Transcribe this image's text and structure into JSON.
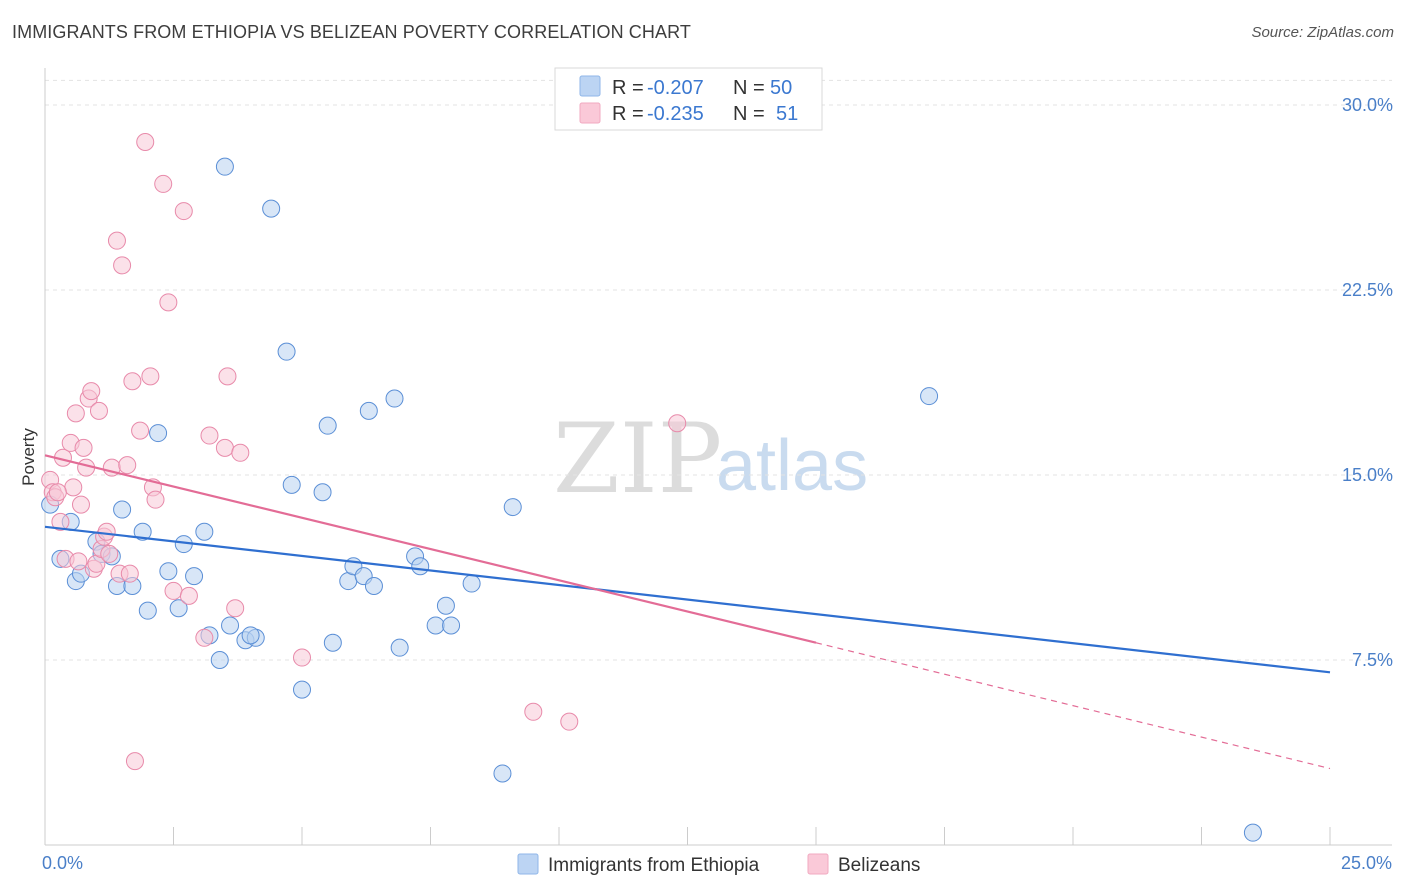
{
  "header": {
    "title": "IMMIGRANTS FROM ETHIOPIA VS BELIZEAN POVERTY CORRELATION CHART",
    "source": "Source: ZipAtlas.com"
  },
  "watermark": {
    "zip": "ZIP",
    "atlas": "atlas"
  },
  "legend_top": {
    "rows": [
      {
        "r_label": "R =",
        "r_value": "-0.207",
        "n_label": "N =",
        "n_value": "50",
        "color": "#8fb6e8"
      },
      {
        "r_label": "R =",
        "r_value": "-0.235",
        "n_label": "N =",
        "n_value": "51",
        "color": "#f1a9c0"
      }
    ]
  },
  "legend_bottom": {
    "items": [
      {
        "label": "Immigrants from Ethiopia",
        "color": "#8fb6e8"
      },
      {
        "label": "Belizeans",
        "color": "#f1a9c0"
      }
    ]
  },
  "chart_data": {
    "type": "scatter",
    "title": "IMMIGRANTS FROM ETHIOPIA VS BELIZEAN POVERTY CORRELATION CHART",
    "xlabel": "",
    "ylabel": "Poverty",
    "xlim": [
      0,
      25
    ],
    "ylim": [
      0,
      31.5
    ],
    "x_tick_labels": [
      "0.0%",
      "25.0%"
    ],
    "y_ticks": [
      7.5,
      15.0,
      22.5,
      30.0
    ],
    "y_tick_labels": [
      "7.5%",
      "15.0%",
      "22.5%",
      "30.0%"
    ],
    "grid": true,
    "legend_placement": "top-center",
    "series": [
      {
        "name": "Immigrants from Ethiopia",
        "color": "#5b8fd6",
        "fill": "#b8d1f0",
        "trend": {
          "x": [
            0,
            25
          ],
          "y": [
            12.9,
            7.0
          ],
          "style": "solid",
          "color": "#2f6fd0"
        },
        "points": [
          [
            0.1,
            13.8
          ],
          [
            0.3,
            11.6
          ],
          [
            0.5,
            13.1
          ],
          [
            0.6,
            10.7
          ],
          [
            0.7,
            11.0
          ],
          [
            1.0,
            12.3
          ],
          [
            1.1,
            11.8
          ],
          [
            1.3,
            11.7
          ],
          [
            1.4,
            10.5
          ],
          [
            1.5,
            13.6
          ],
          [
            1.7,
            10.5
          ],
          [
            1.9,
            12.7
          ],
          [
            2.0,
            9.5
          ],
          [
            2.2,
            16.7
          ],
          [
            2.4,
            11.1
          ],
          [
            2.6,
            9.6
          ],
          [
            2.7,
            12.2
          ],
          [
            2.9,
            10.9
          ],
          [
            3.1,
            12.7
          ],
          [
            3.2,
            8.5
          ],
          [
            3.4,
            7.5
          ],
          [
            3.6,
            8.9
          ],
          [
            3.9,
            8.3
          ],
          [
            4.1,
            8.4
          ],
          [
            3.5,
            27.5
          ],
          [
            4.4,
            25.8
          ],
          [
            4.7,
            20.0
          ],
          [
            4.8,
            14.6
          ],
          [
            5.0,
            6.3
          ],
          [
            5.4,
            14.3
          ],
          [
            5.5,
            17.0
          ],
          [
            5.6,
            8.2
          ],
          [
            5.9,
            10.7
          ],
          [
            6.0,
            11.3
          ],
          [
            6.2,
            10.9
          ],
          [
            6.3,
            17.6
          ],
          [
            6.4,
            10.5
          ],
          [
            6.8,
            18.1
          ],
          [
            6.9,
            8.0
          ],
          [
            7.2,
            11.7
          ],
          [
            7.3,
            11.3
          ],
          [
            7.6,
            8.9
          ],
          [
            7.8,
            9.7
          ],
          [
            7.9,
            8.9
          ],
          [
            8.3,
            10.6
          ],
          [
            8.9,
            2.9
          ],
          [
            9.1,
            13.7
          ],
          [
            17.2,
            18.2
          ],
          [
            23.5,
            0.5
          ],
          [
            4.0,
            8.5
          ]
        ]
      },
      {
        "name": "Belizeans",
        "color": "#e88aaa",
        "fill": "#f8c8d7",
        "trend": {
          "x": [
            0,
            15
          ],
          "y": [
            15.8,
            8.2
          ],
          "style": "solid",
          "color": "#e36c96",
          "extension": {
            "x": [
              15,
              25
            ],
            "y": [
              8.2,
              3.1
            ],
            "style": "dashed"
          }
        },
        "points": [
          [
            0.1,
            14.8
          ],
          [
            0.15,
            14.3
          ],
          [
            0.2,
            14.1
          ],
          [
            0.3,
            13.1
          ],
          [
            0.35,
            15.7
          ],
          [
            0.4,
            11.6
          ],
          [
            0.5,
            16.3
          ],
          [
            0.55,
            14.5
          ],
          [
            0.6,
            17.5
          ],
          [
            0.65,
            11.5
          ],
          [
            0.7,
            13.8
          ],
          [
            0.75,
            16.1
          ],
          [
            0.8,
            15.3
          ],
          [
            0.85,
            18.1
          ],
          [
            0.9,
            18.4
          ],
          [
            0.95,
            11.2
          ],
          [
            1.0,
            11.4
          ],
          [
            1.05,
            17.6
          ],
          [
            1.1,
            12.0
          ],
          [
            1.15,
            12.5
          ],
          [
            1.2,
            12.7
          ],
          [
            1.3,
            15.3
          ],
          [
            1.4,
            24.5
          ],
          [
            1.45,
            11.0
          ],
          [
            1.5,
            23.5
          ],
          [
            1.6,
            15.4
          ],
          [
            1.65,
            11.0
          ],
          [
            1.7,
            18.8
          ],
          [
            1.75,
            3.4
          ],
          [
            1.85,
            16.8
          ],
          [
            1.95,
            28.5
          ],
          [
            2.05,
            19.0
          ],
          [
            2.1,
            14.5
          ],
          [
            2.15,
            14.0
          ],
          [
            2.3,
            26.8
          ],
          [
            2.4,
            22.0
          ],
          [
            2.5,
            10.3
          ],
          [
            2.7,
            25.7
          ],
          [
            2.8,
            10.1
          ],
          [
            3.1,
            8.4
          ],
          [
            3.2,
            16.6
          ],
          [
            3.5,
            16.1
          ],
          [
            3.55,
            19.0
          ],
          [
            3.7,
            9.6
          ],
          [
            3.8,
            15.9
          ],
          [
            5.0,
            7.6
          ],
          [
            9.5,
            5.4
          ],
          [
            10.2,
            5.0
          ],
          [
            12.3,
            17.1
          ],
          [
            0.25,
            14.3
          ],
          [
            1.25,
            11.8
          ]
        ]
      }
    ]
  }
}
